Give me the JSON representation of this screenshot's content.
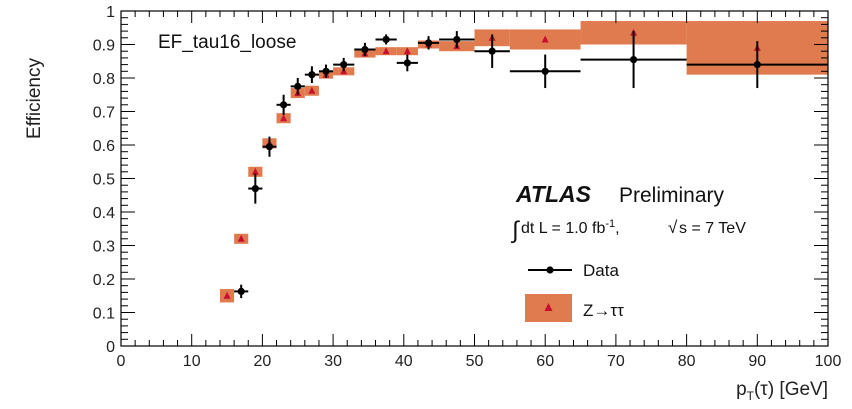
{
  "chart_data": {
    "type": "scatter",
    "title": "EF_tau16_loose",
    "xlabel": {
      "main": "p",
      "sub": "T",
      "rest": "(τ) [GeV]"
    },
    "ylabel": "Efficiency",
    "xlim": [
      0,
      100
    ],
    "ylim": [
      0,
      1
    ],
    "x_ticks": [
      0,
      10,
      20,
      30,
      40,
      50,
      60,
      70,
      80,
      90,
      100
    ],
    "y_ticks": [
      0,
      0.1,
      0.2,
      0.3,
      0.4,
      0.5,
      0.6,
      0.7,
      0.8,
      0.9,
      1
    ],
    "y_tick_labels": [
      "0",
      "0.1",
      "0.2",
      "0.3",
      "0.4",
      "0.5",
      "0.6",
      "0.7",
      "0.8",
      "0.9",
      "1"
    ],
    "x_tick_labels": [
      "0",
      "10",
      "20",
      "30",
      "40",
      "50",
      "60",
      "70",
      "80",
      "90",
      "100"
    ],
    "grid": false,
    "legend_position": "bottom-right",
    "annotations": {
      "experiment": "ATLAS",
      "status": "Preliminary",
      "lumi": "dt L = 1.0 fb",
      "lumi_sup": "-1",
      "energy": "s = 7 TeV",
      "integral_symbol": "∫",
      "sqrt_symbol": "√"
    },
    "series": [
      {
        "name": "Data",
        "kind": "points_with_errorbars",
        "color": "#000000",
        "points": [
          {
            "x": 17,
            "xerr": 1,
            "y": 0.163,
            "yerr": 0.02
          },
          {
            "x": 19,
            "xerr": 1,
            "y": 0.47,
            "yerr": 0.045
          },
          {
            "x": 21,
            "xerr": 1,
            "y": 0.595,
            "yerr": 0.03
          },
          {
            "x": 23,
            "xerr": 1,
            "y": 0.72,
            "yerr": 0.03
          },
          {
            "x": 25,
            "xerr": 1,
            "y": 0.775,
            "yerr": 0.025
          },
          {
            "x": 27,
            "xerr": 1,
            "y": 0.81,
            "yerr": 0.025
          },
          {
            "x": 29,
            "xerr": 1,
            "y": 0.82,
            "yerr": 0.02
          },
          {
            "x": 31.5,
            "xerr": 1.5,
            "y": 0.84,
            "yerr": 0.02
          },
          {
            "x": 34.5,
            "xerr": 1.5,
            "y": 0.885,
            "yerr": 0.02
          },
          {
            "x": 37.5,
            "xerr": 1.5,
            "y": 0.915,
            "yerr": 0.015
          },
          {
            "x": 40.5,
            "xerr": 1.5,
            "y": 0.845,
            "yerr": 0.025
          },
          {
            "x": 43.5,
            "xerr": 1.5,
            "y": 0.905,
            "yerr": 0.02
          },
          {
            "x": 47.5,
            "xerr": 2.5,
            "y": 0.915,
            "yerr": 0.025
          },
          {
            "x": 52.5,
            "xerr": 2.5,
            "y": 0.88,
            "yerr": 0.05
          },
          {
            "x": 60,
            "xerr": 5,
            "y": 0.82,
            "yerr": 0.05
          },
          {
            "x": 72.5,
            "xerr": 7.5,
            "y": 0.855,
            "yerr": 0.085
          },
          {
            "x": 90,
            "xerr": 10,
            "y": 0.84,
            "yerr": 0.07
          }
        ]
      },
      {
        "name": "Z→ττ",
        "kind": "bands_with_markers",
        "band_color": "#e07b4f",
        "marker_color": "#c8102e",
        "bins": [
          {
            "x": 15,
            "xerr": 1,
            "y": 0.15,
            "band": 0.02
          },
          {
            "x": 17,
            "xerr": 1,
            "y": 0.32,
            "band": 0.015
          },
          {
            "x": 19,
            "xerr": 1,
            "y": 0.52,
            "band": 0.015
          },
          {
            "x": 21,
            "xerr": 1,
            "y": 0.605,
            "band": 0.015
          },
          {
            "x": 23,
            "xerr": 1,
            "y": 0.68,
            "band": 0.015
          },
          {
            "x": 25,
            "xerr": 1,
            "y": 0.755,
            "band": 0.015
          },
          {
            "x": 27,
            "xerr": 1,
            "y": 0.762,
            "band": 0.015
          },
          {
            "x": 29,
            "xerr": 1,
            "y": 0.81,
            "band": 0.012
          },
          {
            "x": 31.5,
            "xerr": 1.5,
            "y": 0.82,
            "band": 0.012
          },
          {
            "x": 34.5,
            "xerr": 1.5,
            "y": 0.873,
            "band": 0.012
          },
          {
            "x": 37.5,
            "xerr": 1.5,
            "y": 0.88,
            "band": 0.012
          },
          {
            "x": 40.5,
            "xerr": 1.5,
            "y": 0.88,
            "band": 0.012
          },
          {
            "x": 43.5,
            "xerr": 1.5,
            "y": 0.9,
            "band": 0.012
          },
          {
            "x": 47.5,
            "xerr": 2.5,
            "y": 0.895,
            "band": 0.015
          },
          {
            "x": 52.5,
            "xerr": 2.5,
            "y": 0.92,
            "band": 0.025
          },
          {
            "x": 60,
            "xerr": 5,
            "y": 0.915,
            "band": 0.03
          },
          {
            "x": 72.5,
            "xerr": 7.5,
            "y": 0.935,
            "band": 0.035
          },
          {
            "x": 90,
            "xerr": 10,
            "y": 0.89,
            "band": 0.08
          }
        ]
      }
    ]
  }
}
